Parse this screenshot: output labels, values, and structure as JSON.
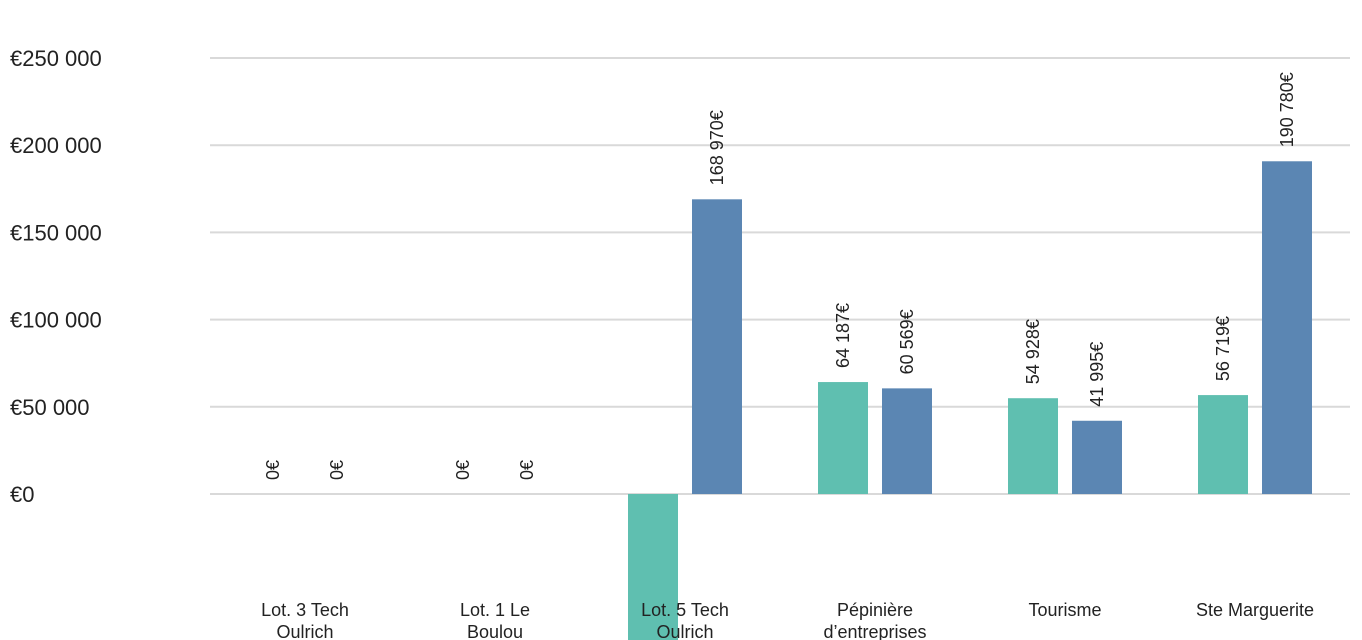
{
  "chart_data": {
    "type": "bar",
    "title": "",
    "xlabel": "",
    "ylabel": "",
    "ylim": [
      -100000,
      260000
    ],
    "y_ticks": [
      {
        "value": 0,
        "label": "€0"
      },
      {
        "value": 50000,
        "label": "€50 000"
      },
      {
        "value": 100000,
        "label": "€100 000"
      },
      {
        "value": 150000,
        "label": "€150 000"
      },
      {
        "value": 200000,
        "label": "€200 000"
      },
      {
        "value": 250000,
        "label": "€250 000"
      }
    ],
    "grid": true,
    "categories": [
      {
        "lines": [
          "Lot. 3 Tech",
          "Oulrich"
        ]
      },
      {
        "lines": [
          "Lot. 1  Le",
          "Boulou"
        ]
      },
      {
        "lines": [
          "Lot. 5 Tech",
          "Oulrich"
        ]
      },
      {
        "lines": [
          "Pépinière",
          "d’entreprises"
        ]
      },
      {
        "lines": [
          "Tourisme"
        ]
      },
      {
        "lines": [
          "Ste Marguerite"
        ]
      }
    ],
    "series": [
      {
        "color": "#5fbfb0",
        "values": [
          0,
          0,
          -100000,
          64187,
          54928,
          56719
        ],
        "labels": [
          "0€",
          "0€",
          "",
          "64 187€",
          "54 928€",
          "56 719€"
        ]
      },
      {
        "color": "#5b86b3",
        "values": [
          0,
          0,
          168970,
          60569,
          41995,
          190780
        ],
        "labels": [
          "0€",
          "0€",
          "168 970€",
          "60 569€",
          "41 995€",
          "190 780€"
        ]
      }
    ]
  }
}
